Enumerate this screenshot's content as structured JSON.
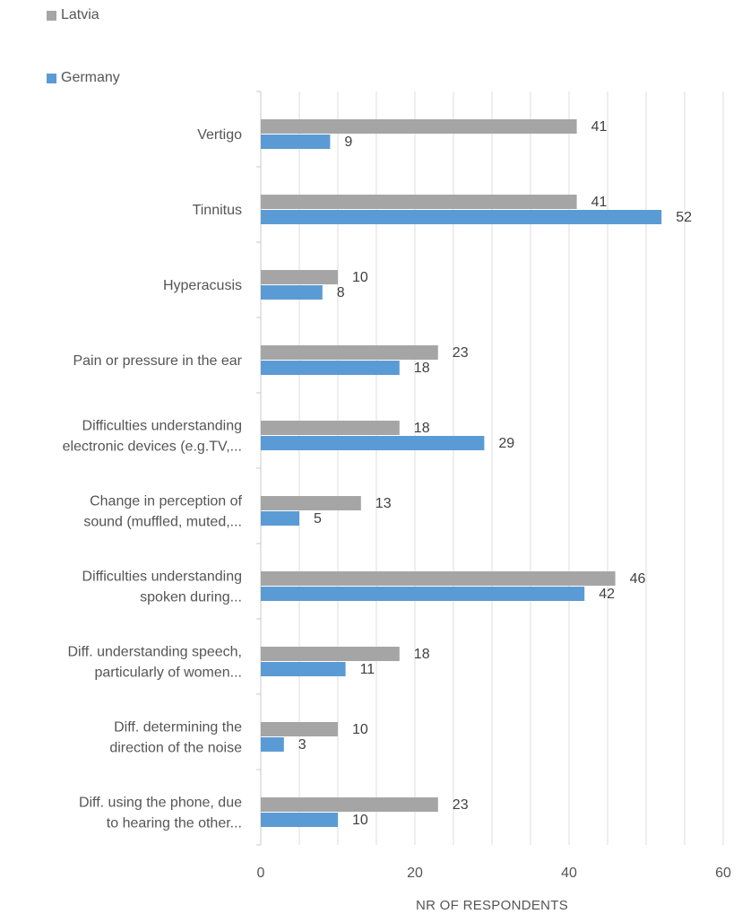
{
  "chart_data": {
    "type": "bar",
    "orientation": "horizontal",
    "categories": [
      [
        "Vertigo"
      ],
      [
        "Tinnitus"
      ],
      [
        "Hyperacusis"
      ],
      [
        "Pain or pressure in the ear"
      ],
      [
        "Difficulties understanding",
        "electronic devices (e.g.TV,..."
      ],
      [
        "Change in perception of",
        "sound (muffled, muted,..."
      ],
      [
        "Difficulties understanding",
        "spoken during..."
      ],
      [
        "Diff. understanding speech,",
        "particularly of women..."
      ],
      [
        "Diff. determining the",
        "direction of the noise"
      ],
      [
        "Diff. using the phone, due",
        "to hearing the other..."
      ]
    ],
    "series": [
      {
        "name": "Latvia",
        "color": "#a5a5a5",
        "values": [
          41,
          41,
          10,
          23,
          18,
          13,
          46,
          18,
          10,
          23
        ]
      },
      {
        "name": "Germany",
        "color": "#5b9bd5",
        "values": [
          9,
          52,
          8,
          18,
          29,
          5,
          42,
          11,
          3,
          10
        ]
      }
    ],
    "xlabel": "NR OF RESPONDENTS",
    "xlim": [
      0,
      60
    ],
    "xticks": [
      0,
      20,
      40,
      60
    ],
    "grid": true,
    "legend_position": "top-left",
    "data_labels": true
  }
}
